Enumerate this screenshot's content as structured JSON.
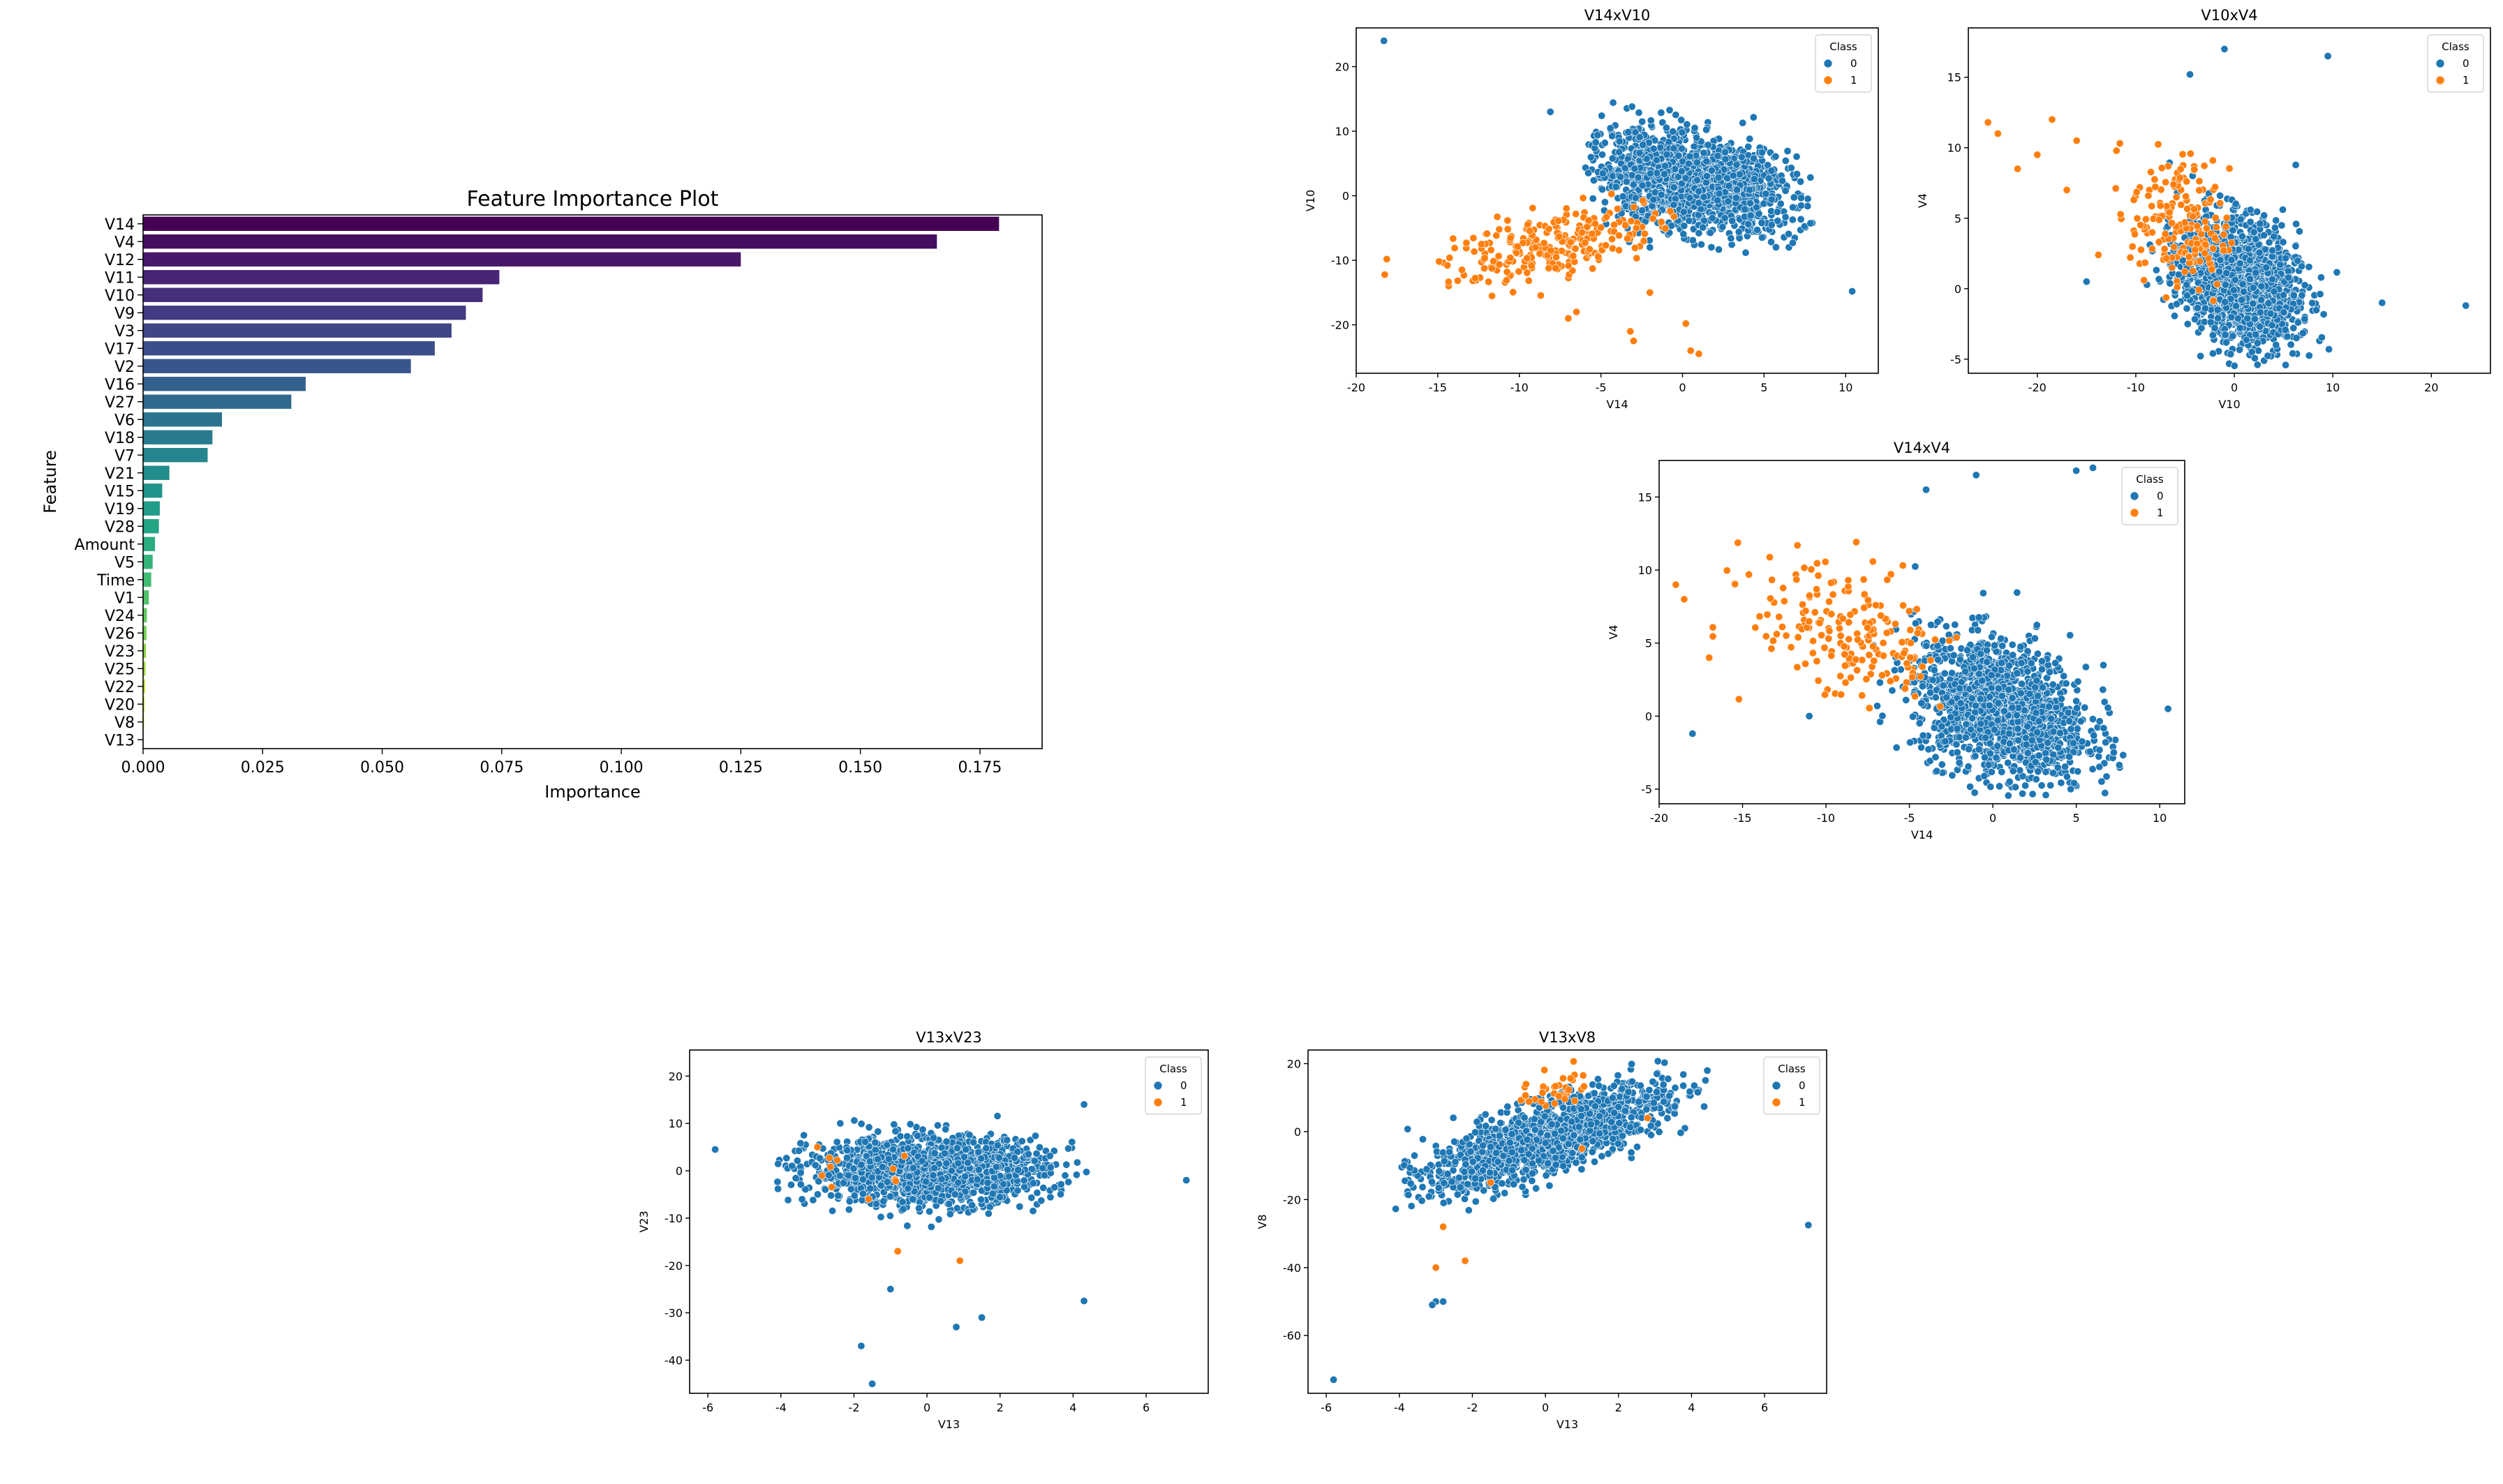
{
  "chart_data": [
    {
      "type": "bar",
      "orientation": "horizontal",
      "title": "Feature Importance Plot",
      "xlabel": "Importance",
      "ylabel": "Feature",
      "xlim": [
        0,
        0.188
      ],
      "xticks": [
        "0.000",
        "0.025",
        "0.050",
        "0.075",
        "0.100",
        "0.125",
        "0.150",
        "0.175"
      ],
      "palette": "viridis",
      "categories": [
        "V14",
        "V4",
        "V12",
        "V11",
        "V10",
        "V9",
        "V3",
        "V17",
        "V2",
        "V16",
        "V27",
        "V6",
        "V18",
        "V7",
        "V21",
        "V15",
        "V19",
        "V28",
        "Amount",
        "V5",
        "Time",
        "V1",
        "V24",
        "V26",
        "V23",
        "V25",
        "V22",
        "V20",
        "V8",
        "V13"
      ],
      "values": [
        0.179,
        0.166,
        0.125,
        0.0745,
        0.071,
        0.0675,
        0.0645,
        0.061,
        0.056,
        0.034,
        0.031,
        0.0165,
        0.0145,
        0.0135,
        0.0055,
        0.004,
        0.0035,
        0.0033,
        0.0025,
        0.002,
        0.0017,
        0.0012,
        0.0008,
        0.0007,
        0.0006,
        0.0005,
        0.0004,
        0.0003,
        0.0002,
        0.0001
      ]
    },
    {
      "type": "scatter",
      "title": "V14xV10",
      "xlabel": "V14",
      "ylabel": "V10",
      "xlim": [
        -20,
        12
      ],
      "ylim": [
        -27.5,
        26
      ],
      "xticks": [
        -20,
        -15,
        -10,
        -5,
        0,
        5,
        10
      ],
      "yticks": [
        -20,
        -10,
        0,
        10,
        20
      ],
      "legend": {
        "title": "Class",
        "position": "top-right",
        "entries": [
          "0",
          "1"
        ]
      },
      "colors": {
        "class_0": "#1f77b4",
        "class_1": "#ff7f0e"
      },
      "series": [
        {
          "name": "0",
          "clusters": [
            {
              "cx": 0.5,
              "cy": 2.0,
              "sx": 3.2,
              "sy": 3.6,
              "n": 1500,
              "slope": -0.45,
              "xr": [
                -6,
                8
              ],
              "yr": [
                -9,
                15
              ]
            }
          ],
          "points": [
            [
              -18.3,
              24
            ],
            [
              -8.1,
              13
            ],
            [
              10.4,
              -14.8
            ],
            [
              -9,
              -7
            ],
            [
              -2,
              -8
            ]
          ]
        },
        {
          "name": "1",
          "clusters": [
            {
              "cx": -7.5,
              "cy": -7.5,
              "sx": 3.5,
              "sy": 2.5,
              "n": 260,
              "slope": 0.5,
              "xr": [
                -19.5,
                0
              ],
              "yr": [
                -17,
                1
              ]
            }
          ],
          "points": [
            [
              -3,
              -22.5
            ],
            [
              -3.2,
              -21
            ],
            [
              0.2,
              -19.8
            ],
            [
              0.5,
              -24
            ],
            [
              1,
              -24.5
            ],
            [
              -6.5,
              -18
            ],
            [
              -7,
              -19
            ],
            [
              -2,
              -15
            ]
          ]
        }
      ]
    },
    {
      "type": "scatter",
      "title": "V10xV4",
      "xlabel": "V10",
      "ylabel": "V4",
      "xlim": [
        -27,
        26
      ],
      "ylim": [
        -6,
        18.5
      ],
      "xticks": [
        -20,
        -10,
        0,
        10,
        20
      ],
      "yticks": [
        -5,
        0,
        5,
        10,
        15
      ],
      "legend": {
        "title": "Class",
        "position": "top-right",
        "entries": [
          "0",
          "1"
        ]
      },
      "colors": {
        "class_0": "#1f77b4",
        "class_1": "#ff7f0e"
      },
      "series": [
        {
          "name": "0",
          "clusters": [
            {
              "cx": 0.5,
              "cy": 0.5,
              "sx": 3.0,
              "sy": 2.2,
              "n": 1500,
              "slope": -0.2,
              "xr": [
                -9,
                15
              ],
              "yr": [
                -5.5,
                13
              ]
            }
          ],
          "points": [
            [
              23.5,
              -1.2
            ],
            [
              9.5,
              16.5
            ],
            [
              -1,
              17
            ],
            [
              -4.5,
              15.2
            ],
            [
              15,
              -1
            ],
            [
              -15,
              0.5
            ]
          ]
        },
        {
          "name": "1",
          "clusters": [
            {
              "cx": -5.5,
              "cy": 4.5,
              "sx": 2.5,
              "sy": 2.5,
              "n": 180,
              "slope": -0.2,
              "xr": [
                -14,
                0
              ],
              "yr": [
                -1,
                12
              ]
            }
          ],
          "points": [
            [
              -25,
              11.8
            ],
            [
              -24,
              11
            ],
            [
              -22,
              8.5
            ],
            [
              -20,
              9.5
            ],
            [
              -18.5,
              12
            ],
            [
              -16,
              10.5
            ],
            [
              -17,
              7
            ]
          ]
        }
      ]
    },
    {
      "type": "scatter",
      "title": "V14xV4",
      "xlabel": "V14",
      "ylabel": "V4",
      "xlim": [
        -20,
        11.5
      ],
      "ylim": [
        -6,
        17.5
      ],
      "xticks": [
        -20,
        -15,
        -10,
        -5,
        0,
        5,
        10
      ],
      "yticks": [
        -5,
        0,
        5,
        10,
        15
      ],
      "legend": {
        "title": "Class",
        "position": "top-right",
        "entries": [
          "0",
          "1"
        ]
      },
      "colors": {
        "class_0": "#1f77b4",
        "class_1": "#ff7f0e"
      },
      "series": [
        {
          "name": "0",
          "clusters": [
            {
              "cx": 0.5,
              "cy": 0.5,
              "sx": 2.6,
              "sy": 2.3,
              "n": 1500,
              "slope": -0.3,
              "xr": [
                -8,
                8
              ],
              "yr": [
                -5.5,
                13
              ]
            }
          ],
          "points": [
            [
              -18,
              -1.2
            ],
            [
              10.5,
              0.5
            ],
            [
              -4,
              15.5
            ],
            [
              -1,
              16.5
            ],
            [
              5,
              16.8
            ],
            [
              6,
              17
            ],
            [
              -11,
              0
            ]
          ]
        },
        {
          "name": "1",
          "clusters": [
            {
              "cx": -8.5,
              "cy": 5.5,
              "sx": 3.0,
              "sy": 2.5,
              "n": 200,
              "slope": -0.35,
              "xr": [
                -18,
                -2
              ],
              "yr": [
                0,
                12
              ]
            }
          ],
          "points": [
            [
              -19,
              9
            ],
            [
              -18.5,
              8
            ],
            [
              -17,
              4
            ]
          ]
        }
      ]
    },
    {
      "type": "scatter",
      "title": "V13xV23",
      "xlabel": "V13",
      "ylabel": "V23",
      "xlim": [
        -6.5,
        7.7
      ],
      "ylim": [
        -47,
        25.5
      ],
      "xticks": [
        -6,
        -4,
        -2,
        0,
        2,
        4,
        6
      ],
      "yticks": [
        -40,
        -30,
        -20,
        -10,
        0,
        10,
        20
      ],
      "legend": {
        "title": "Class",
        "position": "top-right",
        "entries": [
          "0",
          "1"
        ]
      },
      "colors": {
        "class_0": "#1f77b4",
        "class_1": "#ff7f0e"
      },
      "series": [
        {
          "name": "0",
          "clusters": [
            {
              "cx": 0,
              "cy": 0,
              "sx": 1.6,
              "sy": 3.5,
              "n": 1500,
              "slope": 0,
              "xr": [
                -4.2,
                4.6
              ],
              "yr": [
                -28,
                23
              ]
            }
          ],
          "points": [
            [
              -5.8,
              4.5
            ],
            [
              7.1,
              -2
            ],
            [
              -1.8,
              -37
            ],
            [
              -1.5,
              -45
            ],
            [
              0.8,
              -33
            ],
            [
              1.5,
              -31
            ],
            [
              4.3,
              -27.5
            ],
            [
              -1,
              -25
            ],
            [
              4.3,
              14
            ]
          ]
        },
        {
          "name": "1",
          "clusters": [
            {
              "cx": -1.5,
              "cy": -2,
              "sx": 1.2,
              "sy": 3,
              "n": 10,
              "slope": 0,
              "xr": [
                -3.5,
                1
              ],
              "yr": [
                -12,
                6
              ]
            }
          ],
          "points": [
            [
              -3,
              5
            ],
            [
              0.9,
              -19
            ],
            [
              -0.8,
              -17
            ],
            [
              -1.6,
              -6
            ]
          ]
        }
      ]
    },
    {
      "type": "scatter",
      "title": "V13xV8",
      "xlabel": "V13",
      "ylabel": "V8",
      "xlim": [
        -6.5,
        7.7
      ],
      "ylim": [
        -77,
        24
      ],
      "xticks": [
        -6,
        -4,
        -2,
        0,
        2,
        4,
        6
      ],
      "yticks": [
        -60,
        -40,
        -20,
        0,
        20
      ],
      "legend": {
        "title": "Class",
        "position": "top-right",
        "entries": [
          "0",
          "1"
        ]
      },
      "colors": {
        "class_0": "#1f77b4",
        "class_1": "#ff7f0e"
      },
      "series": [
        {
          "name": "0",
          "clusters": [
            {
              "cx": 0,
              "cy": -2,
              "sx": 1.6,
              "sy": 5,
              "n": 1500,
              "slope": 3.5,
              "xr": [
                -4.2,
                4.6
              ],
              "yr": [
                -35,
                21
              ]
            }
          ],
          "points": [
            [
              -5.8,
              -73
            ],
            [
              7.2,
              -27.5
            ],
            [
              -3,
              -50
            ],
            [
              -2.8,
              -50
            ],
            [
              -3.1,
              -51
            ]
          ]
        },
        {
          "name": "1",
          "clusters": [
            {
              "cx": 0.5,
              "cy": 14,
              "sx": 0.7,
              "sy": 3,
              "n": 40,
              "slope": 5,
              "xr": [
                -1,
                1.6
              ],
              "yr": [
                5,
                21
              ]
            }
          ],
          "points": [
            [
              -3,
              -40
            ],
            [
              -2.2,
              -38
            ],
            [
              -2.8,
              -28
            ],
            [
              -1.5,
              -15
            ],
            [
              1,
              -5
            ],
            [
              2.8,
              4
            ]
          ]
        }
      ]
    }
  ]
}
